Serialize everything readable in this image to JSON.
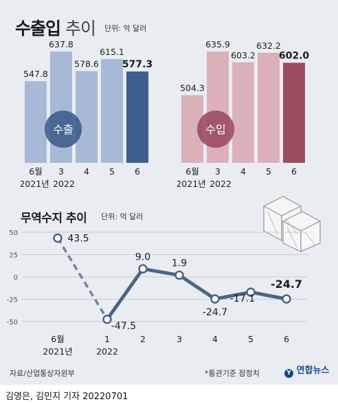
{
  "header": {
    "title_bold": "수출입",
    "title_light": " 추이",
    "unit": "단위: 억 달러"
  },
  "trade_header": {
    "title": "무역수지 추이",
    "unit": "단위: 억 달러"
  },
  "footer": {
    "source": "자료/산업통상자원부",
    "note": "*통관기준 잠정치",
    "logo": "연합뉴스",
    "credit": "김영은, 김민지 기자  20220701"
  },
  "colors": {
    "export_past": "#a8b9d8",
    "export_latest": "#3e5e8e",
    "import_past": "#dcb0b9",
    "import_latest": "#9b4e60",
    "line": "#4a6584",
    "dash": "#6a86a3",
    "background": "#e9edf1"
  },
  "chart_data": [
    {
      "type": "bar",
      "categories": [
        "6월",
        "3",
        "4",
        "5",
        "6"
      ],
      "category_sub": [
        "2021년",
        "2022"
      ],
      "values": [
        547.8,
        637.8,
        578.6,
        615.1,
        577.3
      ],
      "labels": [
        "547.8",
        "637.8",
        "578.6",
        "615.1",
        "577.3"
      ],
      "highlight_index": 4,
      "badge": "수출"
    },
    {
      "type": "bar",
      "categories": [
        "6월",
        "3",
        "4",
        "5",
        "6"
      ],
      "category_sub": [
        "2021년",
        "2022"
      ],
      "values": [
        504.3,
        635.9,
        603.2,
        632.2,
        602.0
      ],
      "labels": [
        "504.3",
        "635.9",
        "603.2",
        "632.2",
        "602.0"
      ],
      "highlight_index": 4,
      "badge": "수입"
    },
    {
      "type": "line",
      "categories": [
        "6월",
        "1",
        "2",
        "3",
        "4",
        "5",
        "6"
      ],
      "category_sub": [
        "2021년",
        "2022"
      ],
      "values": [
        43.5,
        -47.5,
        9.0,
        1.9,
        -24.7,
        -17.1,
        -24.7
      ],
      "labels": [
        "43.5",
        "-47.5",
        "9.0",
        "1.9",
        "-24.7",
        "-17.1",
        "-24.7"
      ],
      "dashed_segment": [
        0,
        1
      ],
      "ylim": [
        -50,
        50
      ],
      "yticks": [
        50,
        25,
        0,
        -25,
        -50
      ],
      "grid": true
    }
  ]
}
